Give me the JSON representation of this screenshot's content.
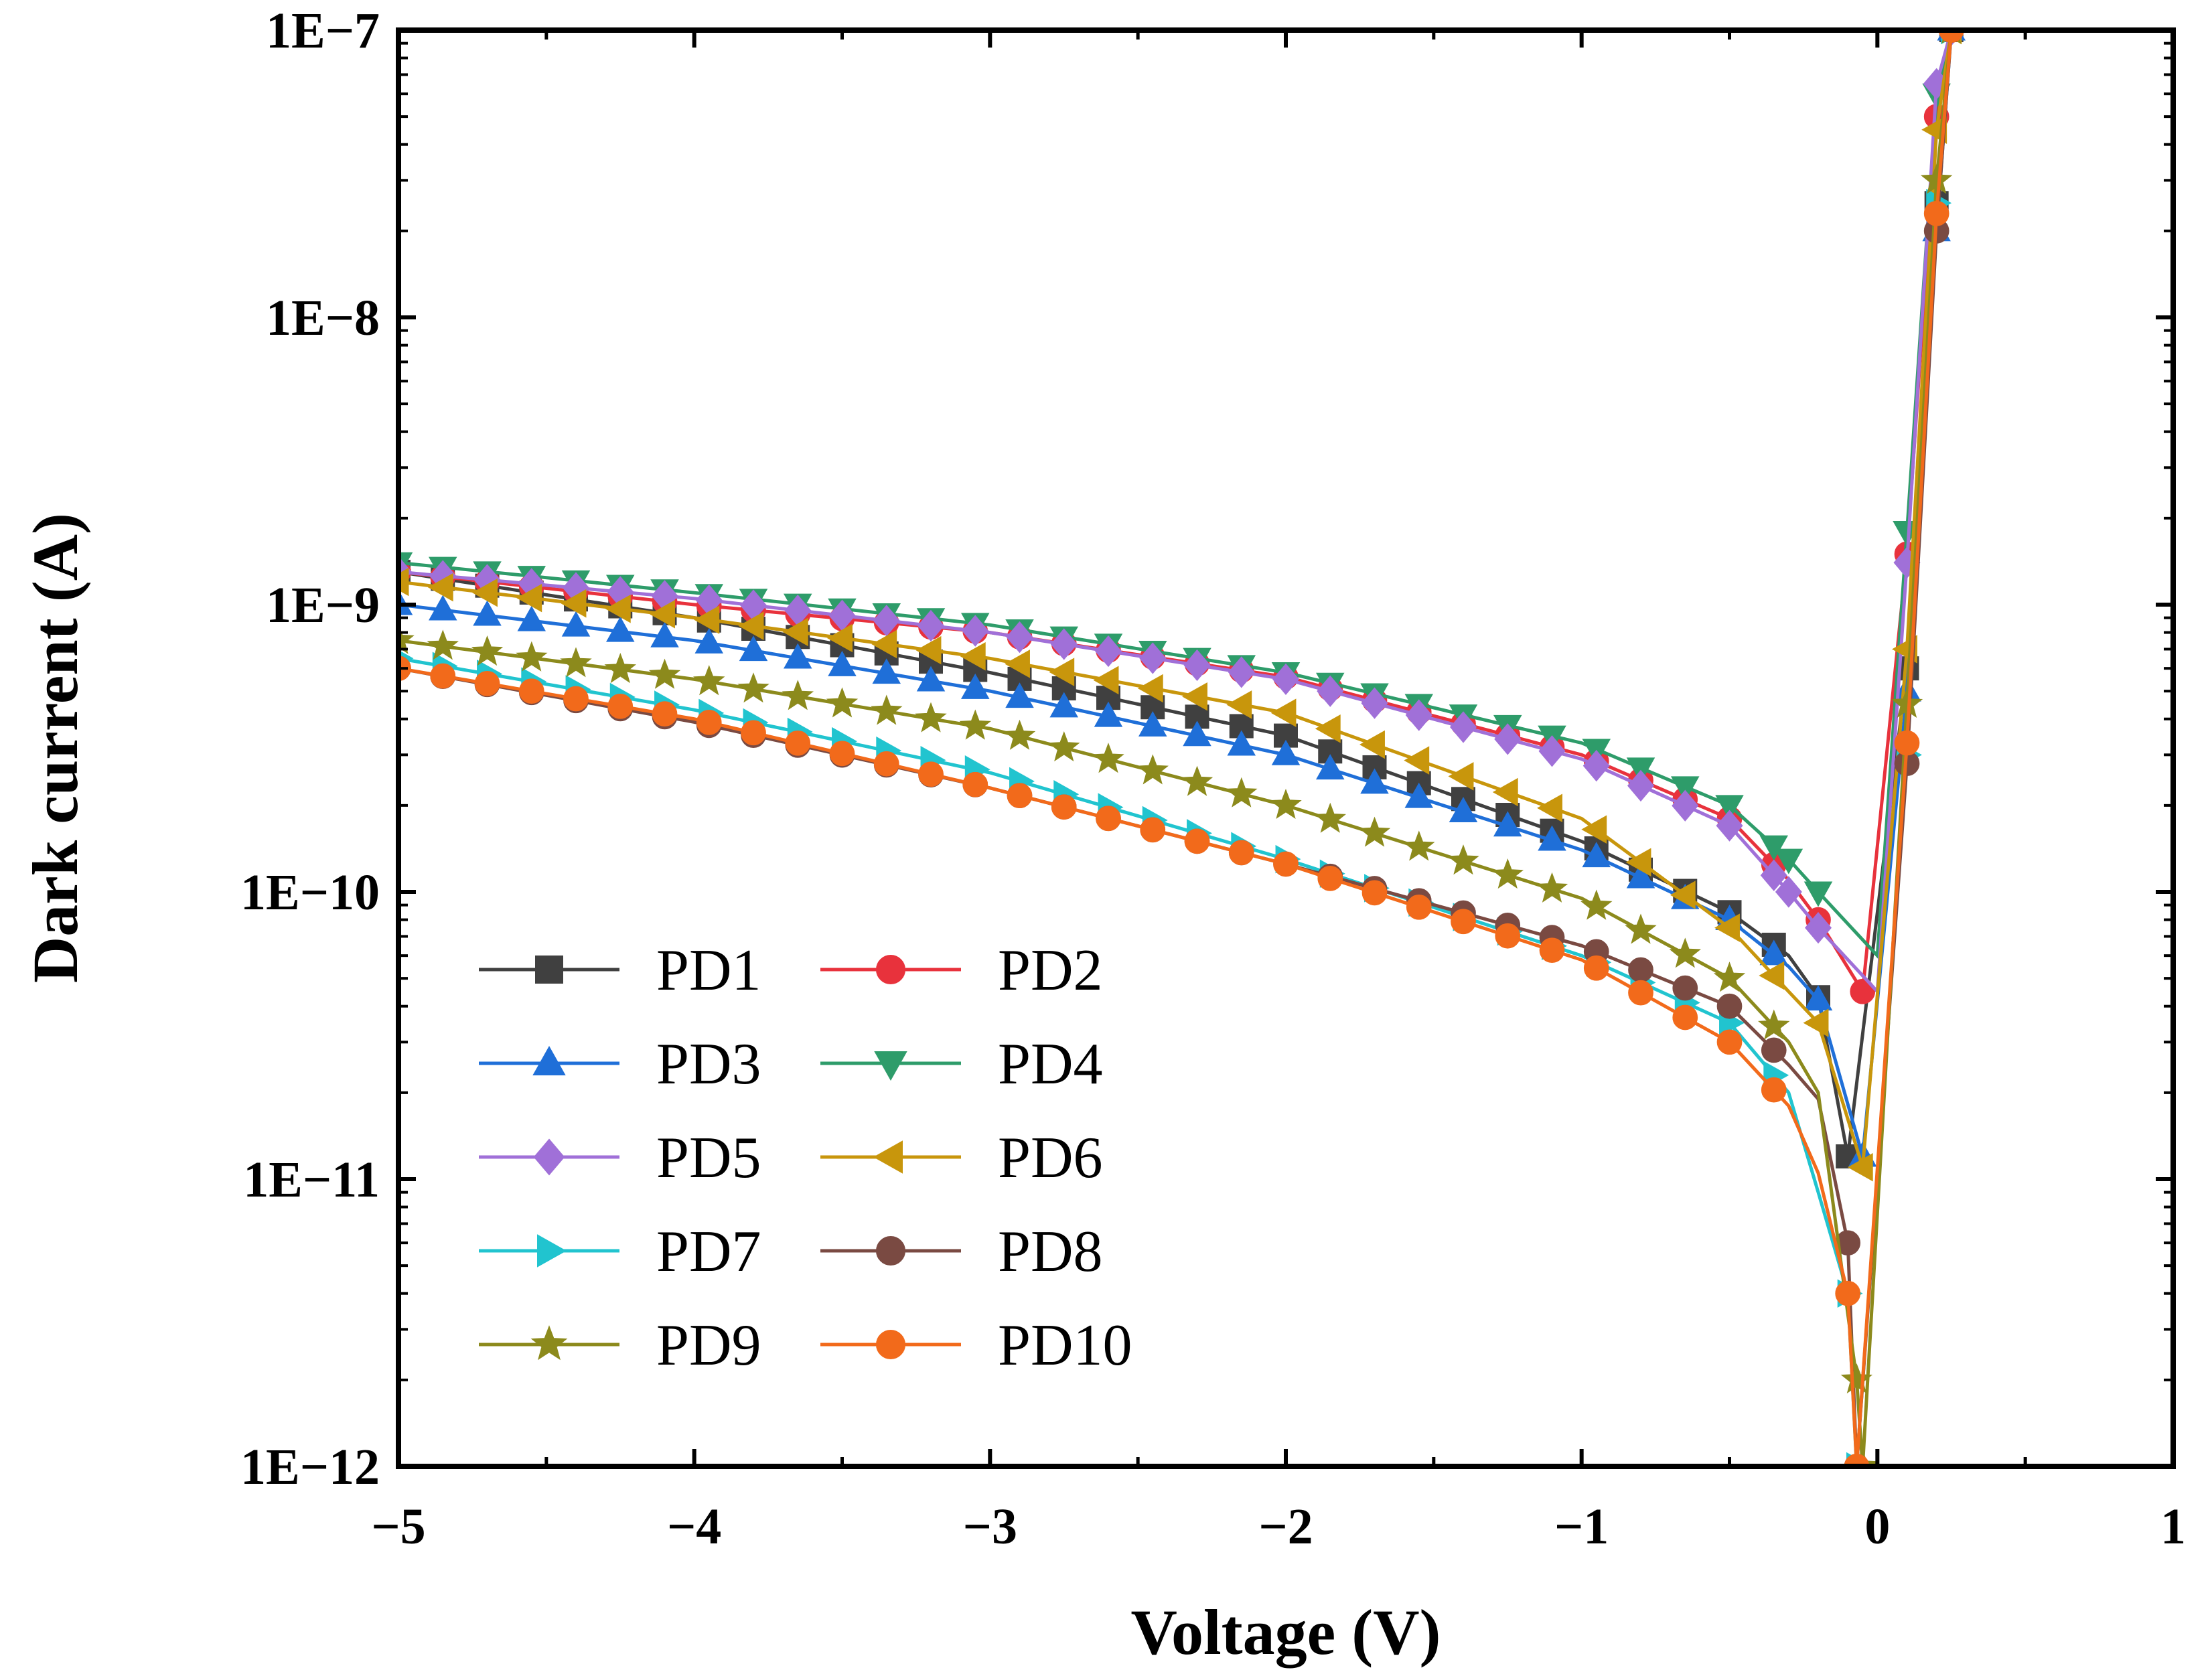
{
  "chart_data": {
    "type": "line",
    "title": "",
    "xlabel": "Voltage (V)",
    "ylabel": "Dark current (A)",
    "xlim": [
      -5,
      1
    ],
    "ylim": [
      1e-12,
      1e-07
    ],
    "yscale": "log",
    "xticks": [
      -5,
      -4,
      -3,
      -2,
      -1,
      0,
      1
    ],
    "xtick_labels": [
      "−5",
      "−4",
      "−3",
      "−2",
      "−1",
      "0",
      "1"
    ],
    "yticks": [
      1e-12,
      1e-11,
      1e-10,
      1e-09,
      1e-08,
      1e-07
    ],
    "ytick_labels": [
      "1E−12",
      "1E−11",
      "1E−10",
      "1E−9",
      "1E−8",
      "1E−7"
    ],
    "legend_position": "bottom-left",
    "grid": false,
    "series": [
      {
        "name": "PD1",
        "color": "#404040",
        "marker": "square",
        "points": [
          [
            -5,
            1.3e-09
          ],
          [
            -4,
            9e-10
          ],
          [
            -3,
            5.8e-10
          ],
          [
            -2,
            3.5e-10
          ],
          [
            -1,
            1.5e-10
          ],
          [
            -0.5,
            8.5e-11
          ],
          [
            -0.3,
            6e-11
          ],
          [
            -0.2,
            4.3e-11
          ],
          [
            -0.1,
            1.2e-11
          ],
          [
            0.1,
            6e-10
          ],
          [
            0.2,
            2.5e-08
          ],
          [
            0.25,
            1e-07
          ]
        ]
      },
      {
        "name": "PD2",
        "color": "#e8323c",
        "marker": "circle",
        "points": [
          [
            -5,
            1.3e-09
          ],
          [
            -4,
            1e-09
          ],
          [
            -3,
            8e-10
          ],
          [
            -2,
            5.6e-10
          ],
          [
            -1,
            3e-10
          ],
          [
            -0.5,
            1.8e-10
          ],
          [
            -0.3,
            1.1e-10
          ],
          [
            -0.2,
            8e-11
          ],
          [
            -0.05,
            4.5e-11
          ],
          [
            0.1,
            1.5e-09
          ],
          [
            0.2,
            5e-08
          ],
          [
            0.25,
            1e-07
          ]
        ]
      },
      {
        "name": "PD3",
        "color": "#1f6fd8",
        "marker": "triangle-up",
        "points": [
          [
            -5,
            1e-09
          ],
          [
            -4,
            7.5e-10
          ],
          [
            -3,
            5e-10
          ],
          [
            -2,
            3e-10
          ],
          [
            -1,
            1.4e-10
          ],
          [
            -0.5,
            8e-11
          ],
          [
            -0.3,
            5.5e-11
          ],
          [
            -0.2,
            4.2e-11
          ],
          [
            -0.05,
            1.2e-11
          ],
          [
            0.1,
            5e-10
          ],
          [
            0.2,
            2e-08
          ],
          [
            0.25,
            1e-07
          ]
        ]
      },
      {
        "name": "PD4",
        "color": "#2e9c6a",
        "marker": "triangle-down",
        "points": [
          [
            -5,
            1.4e-09
          ],
          [
            -4,
            1.1e-09
          ],
          [
            -3,
            8.5e-10
          ],
          [
            -2,
            5.8e-10
          ],
          [
            -1,
            3.3e-10
          ],
          [
            -0.5,
            2e-10
          ],
          [
            -0.3,
            1.3e-10
          ],
          [
            -0.2,
            1e-10
          ],
          [
            0,
            6e-11
          ],
          [
            0.1,
            1.8e-09
          ],
          [
            0.2,
            6e-08
          ],
          [
            0.25,
            1e-07
          ]
        ]
      },
      {
        "name": "PD5",
        "color": "#a070d8",
        "marker": "diamond",
        "points": [
          [
            -5,
            1.3e-09
          ],
          [
            -4,
            1.05e-09
          ],
          [
            -3,
            8e-10
          ],
          [
            -2,
            5.5e-10
          ],
          [
            -1,
            2.9e-10
          ],
          [
            -0.5,
            1.7e-10
          ],
          [
            -0.3,
            1e-10
          ],
          [
            -0.2,
            7.5e-11
          ],
          [
            0,
            4.5e-11
          ],
          [
            0.1,
            1.4e-09
          ],
          [
            0.2,
            6.5e-08
          ],
          [
            0.25,
            1e-07
          ]
        ]
      },
      {
        "name": "PD6",
        "color": "#c8960c",
        "marker": "triangle-left",
        "points": [
          [
            -5,
            1.2e-09
          ],
          [
            -4,
            9e-10
          ],
          [
            -3,
            6.5e-10
          ],
          [
            -2,
            4.2e-10
          ],
          [
            -1,
            1.8e-10
          ],
          [
            -0.5,
            7.5e-11
          ],
          [
            -0.3,
            4.5e-11
          ],
          [
            -0.2,
            3.5e-11
          ],
          [
            -0.05,
            1.1e-11
          ],
          [
            0.1,
            7e-10
          ],
          [
            0.2,
            4.5e-08
          ],
          [
            0.25,
            1e-07
          ]
        ]
      },
      {
        "name": "PD7",
        "color": "#21c4cf",
        "marker": "triangle-right",
        "points": [
          [
            -5,
            6.5e-10
          ],
          [
            -4,
            4.3e-10
          ],
          [
            -3,
            2.6e-10
          ],
          [
            -2,
            1.3e-10
          ],
          [
            -1,
            6e-11
          ],
          [
            -0.5,
            3.5e-11
          ],
          [
            -0.3,
            2e-11
          ],
          [
            -0.2,
            9e-12
          ],
          [
            -0.1,
            4e-12
          ],
          [
            -0.07,
            1e-12
          ],
          [
            0.1,
            3e-10
          ],
          [
            0.2,
            2.5e-08
          ],
          [
            0.25,
            1e-07
          ]
        ]
      },
      {
        "name": "PD8",
        "color": "#7a4a42",
        "marker": "circle",
        "points": [
          [
            -5,
            6e-10
          ],
          [
            -4,
            3.9e-10
          ],
          [
            -3,
            2.3e-10
          ],
          [
            -2,
            1.25e-10
          ],
          [
            -1,
            6.5e-11
          ],
          [
            -0.5,
            4e-11
          ],
          [
            -0.3,
            2.5e-11
          ],
          [
            -0.2,
            1.9e-11
          ],
          [
            -0.1,
            6e-12
          ],
          [
            -0.07,
            1e-12
          ],
          [
            0.1,
            2.8e-10
          ],
          [
            0.2,
            2e-08
          ],
          [
            0.25,
            1e-07
          ]
        ]
      },
      {
        "name": "PD9",
        "color": "#8c8a1c",
        "marker": "star",
        "points": [
          [
            -5,
            7.5e-10
          ],
          [
            -4,
            5.5e-10
          ],
          [
            -3,
            3.7e-10
          ],
          [
            -2,
            2e-10
          ],
          [
            -1,
            9.5e-11
          ],
          [
            -0.5,
            5e-11
          ],
          [
            -0.3,
            3e-11
          ],
          [
            -0.2,
            2e-11
          ],
          [
            -0.07,
            2e-12
          ],
          [
            -0.05,
            1e-12
          ],
          [
            0.1,
            4.5e-10
          ],
          [
            0.2,
            3e-08
          ],
          [
            0.25,
            1e-07
          ]
        ]
      },
      {
        "name": "PD10",
        "color": "#f26a1b",
        "marker": "circle",
        "points": [
          [
            -5,
            6e-10
          ],
          [
            -4,
            4e-10
          ],
          [
            -3,
            2.3e-10
          ],
          [
            -2,
            1.25e-10
          ],
          [
            -1,
            5.8e-11
          ],
          [
            -0.5,
            3e-11
          ],
          [
            -0.3,
            1.8e-11
          ],
          [
            -0.2,
            1.05e-11
          ],
          [
            -0.1,
            4e-12
          ],
          [
            -0.07,
            1e-12
          ],
          [
            0.1,
            3.3e-10
          ],
          [
            0.2,
            2.3e-08
          ],
          [
            0.25,
            1e-07
          ]
        ]
      }
    ]
  }
}
